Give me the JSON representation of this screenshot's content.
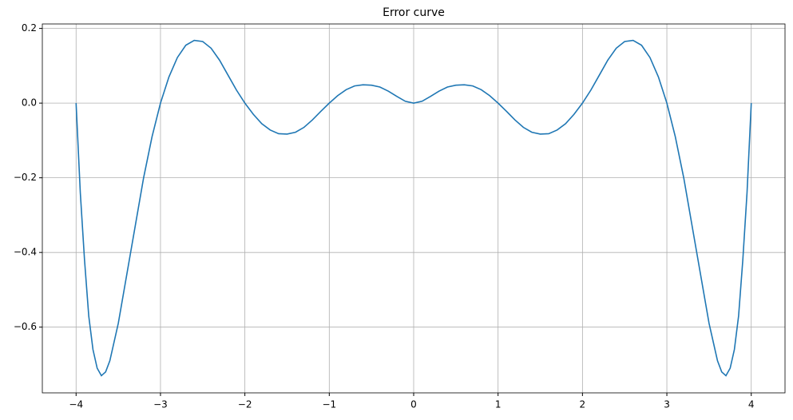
{
  "chart_data": {
    "type": "line",
    "title": "Error curve",
    "x": [
      -4,
      -3.95,
      -3.9,
      -3.85,
      -3.8,
      -3.75,
      -3.7,
      -3.65,
      -3.6,
      -3.5,
      -3.4,
      -3.3,
      -3.2,
      -3.1,
      -3.0,
      -2.9,
      -2.8,
      -2.7,
      -2.6,
      -2.5,
      -2.4,
      -2.3,
      -2.2,
      -2.1,
      -2.0,
      -1.9,
      -1.8,
      -1.7,
      -1.6,
      -1.5,
      -1.4,
      -1.3,
      -1.2,
      -1.1,
      -1.0,
      -0.9,
      -0.8,
      -0.7,
      -0.6,
      -0.5,
      -0.4,
      -0.3,
      -0.2,
      -0.1,
      0,
      0.1,
      0.2,
      0.3,
      0.4,
      0.5,
      0.6,
      0.7,
      0.8,
      0.9,
      1.0,
      1.1,
      1.2,
      1.3,
      1.4,
      1.5,
      1.6,
      1.7,
      1.8,
      1.9,
      2.0,
      2.1,
      2.2,
      2.3,
      2.4,
      2.5,
      2.6,
      2.7,
      2.8,
      2.9,
      3.0,
      3.1,
      3.2,
      3.3,
      3.4,
      3.5,
      3.6,
      3.65,
      3.7,
      3.75,
      3.8,
      3.85,
      3.9,
      3.95,
      4
    ],
    "values": [
      0,
      -0.24,
      -0.42,
      -0.57,
      -0.66,
      -0.71,
      -0.73,
      -0.72,
      -0.69,
      -0.59,
      -0.46,
      -0.33,
      -0.2,
      -0.09,
      0,
      0.07,
      0.122,
      0.155,
      0.168,
      0.165,
      0.147,
      0.115,
      0.075,
      0.035,
      0,
      -0.03,
      -0.055,
      -0.072,
      -0.082,
      -0.083,
      -0.078,
      -0.065,
      -0.045,
      -0.022,
      0,
      0.02,
      0.036,
      0.046,
      0.049,
      0.048,
      0.043,
      0.032,
      0.018,
      0.005,
      0,
      0.005,
      0.018,
      0.032,
      0.043,
      0.048,
      0.049,
      0.046,
      0.036,
      0.02,
      0,
      -0.022,
      -0.045,
      -0.065,
      -0.078,
      -0.083,
      -0.082,
      -0.072,
      -0.055,
      -0.03,
      0,
      0.035,
      0.075,
      0.115,
      0.147,
      0.165,
      0.168,
      0.155,
      0.122,
      0.07,
      0,
      -0.09,
      -0.2,
      -0.33,
      -0.46,
      -0.59,
      -0.69,
      -0.72,
      -0.73,
      -0.71,
      -0.66,
      -0.57,
      -0.42,
      -0.24,
      0
    ],
    "color": "#1f77b4",
    "xlim": [
      -4.4,
      4.4
    ],
    "ylim": [
      -0.776,
      0.212
    ],
    "xticks": [
      {
        "value": -4,
        "label": "−4"
      },
      {
        "value": -3,
        "label": "−3"
      },
      {
        "value": -2,
        "label": "−2"
      },
      {
        "value": -1,
        "label": "−1"
      },
      0,
      1,
      2,
      3,
      4
    ],
    "yticks": [
      0.2,
      {
        "value": 0,
        "label": "0.0"
      },
      {
        "value": -0.2,
        "label": "−0.2"
      },
      {
        "value": -0.4,
        "label": "−0.4"
      },
      {
        "value": -0.6,
        "label": "−0.6"
      }
    ],
    "grid": true
  }
}
